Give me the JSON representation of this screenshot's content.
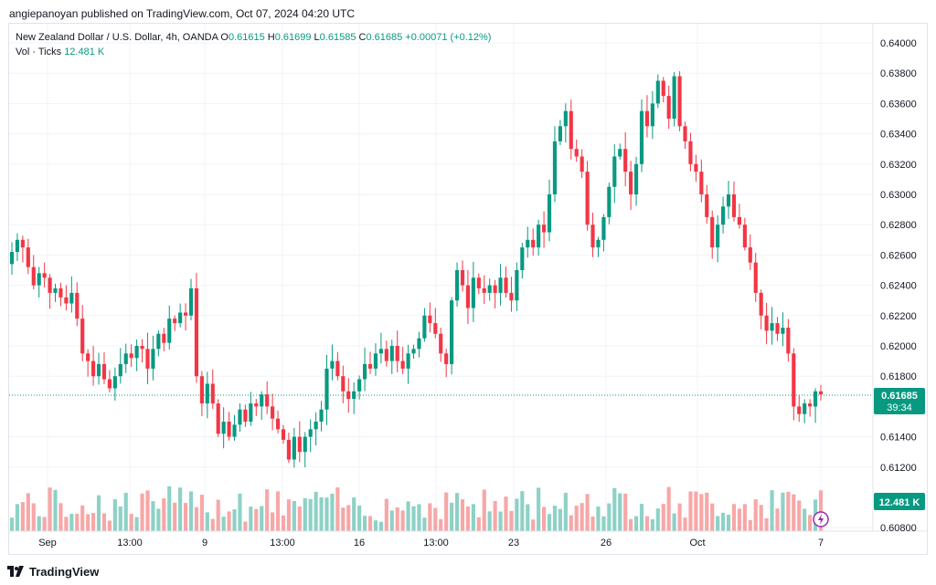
{
  "header": {
    "text": "angiepanoyan published on TradingView.com, Oct 07, 2024 04:20 UTC"
  },
  "legend": {
    "symbol": "New Zealand Dollar / U.S. Dollar, 4h, OANDA",
    "o_label": "O",
    "o_value": "0.61615",
    "h_label": "H",
    "h_value": "0.61699",
    "l_label": "L",
    "l_value": "0.61585",
    "c_label": "C",
    "c_value": "0.61685",
    "change": "+0.00071 (+0.12%)",
    "vol_label": "Vol · Ticks",
    "vol_value": "12.481 K"
  },
  "price_axis": {
    "labels": [
      "0.64000",
      "0.63800",
      "0.63600",
      "0.63400",
      "0.63200",
      "0.63000",
      "0.62800",
      "0.62600",
      "0.62400",
      "0.62200",
      "0.62000",
      "0.61800",
      "0.61400",
      "0.61200",
      "0.60800"
    ],
    "current_price": "0.61685",
    "countdown": "39:34",
    "volume_badge": "12.481 K"
  },
  "time_axis": {
    "labels": [
      "Sep",
      "13:00",
      "9",
      "13:00",
      "16",
      "13:00",
      "23",
      "26",
      "Oct",
      "7"
    ]
  },
  "footer": {
    "brand": "TradingView"
  },
  "colors": {
    "up": "#089981",
    "down": "#f23645",
    "vol_up": "#8ed1c6",
    "vol_down": "#f7a7a7",
    "price_line": "#089981",
    "grid": "#f0f3fa"
  },
  "chart_data": {
    "type": "candlestick",
    "title": "New Zealand Dollar / U.S. Dollar, 4h, OANDA",
    "ylim": [
      0.608,
      0.641
    ],
    "x_tick_labels": [
      "Sep",
      "13:00",
      "9",
      "13:00",
      "16",
      "13:00",
      "23",
      "26",
      "Oct",
      "7"
    ],
    "last_close": 0.61685,
    "closes": [
      0.6262,
      0.627,
      0.6265,
      0.6252,
      0.624,
      0.6248,
      0.6245,
      0.6235,
      0.6238,
      0.6232,
      0.6228,
      0.6235,
      0.6218,
      0.6195,
      0.619,
      0.618,
      0.6188,
      0.6178,
      0.6172,
      0.618,
      0.6188,
      0.6195,
      0.6192,
      0.62,
      0.6198,
      0.6185,
      0.6198,
      0.6208,
      0.6202,
      0.6218,
      0.6215,
      0.6222,
      0.622,
      0.6238,
      0.618,
      0.6162,
      0.6175,
      0.6162,
      0.6142,
      0.615,
      0.614,
      0.6148,
      0.6158,
      0.615,
      0.6162,
      0.616,
      0.6168,
      0.616,
      0.6152,
      0.6145,
      0.6138,
      0.6125,
      0.614,
      0.613,
      0.614,
      0.6145,
      0.615,
      0.6158,
      0.6185,
      0.619,
      0.618,
      0.617,
      0.6165,
      0.617,
      0.6178,
      0.6188,
      0.6185,
      0.6195,
      0.6198,
      0.619,
      0.62,
      0.619,
      0.6185,
      0.6195,
      0.6198,
      0.6205,
      0.622,
      0.6215,
      0.6208,
      0.6195,
      0.6188,
      0.623,
      0.625,
      0.624,
      0.6225,
      0.6245,
      0.6238,
      0.6235,
      0.624,
      0.6235,
      0.6245,
      0.6235,
      0.623,
      0.625,
      0.6265,
      0.627,
      0.6265,
      0.628,
      0.6275,
      0.63,
      0.6335,
      0.6345,
      0.6355,
      0.633,
      0.6325,
      0.6315,
      0.628,
      0.6265,
      0.627,
      0.6285,
      0.6305,
      0.6325,
      0.633,
      0.6315,
      0.63,
      0.632,
      0.6355,
      0.6345,
      0.636,
      0.6375,
      0.6365,
      0.635,
      0.6378,
      0.6345,
      0.6335,
      0.632,
      0.6315,
      0.63,
      0.6285,
      0.6265,
      0.628,
      0.6292,
      0.63,
      0.6285,
      0.628,
      0.6265,
      0.6255,
      0.6235,
      0.622,
      0.621,
      0.6215,
      0.6208,
      0.6212,
      0.6195,
      0.616,
      0.6155,
      0.6162,
      0.616,
      0.617,
      0.6168
    ]
  }
}
